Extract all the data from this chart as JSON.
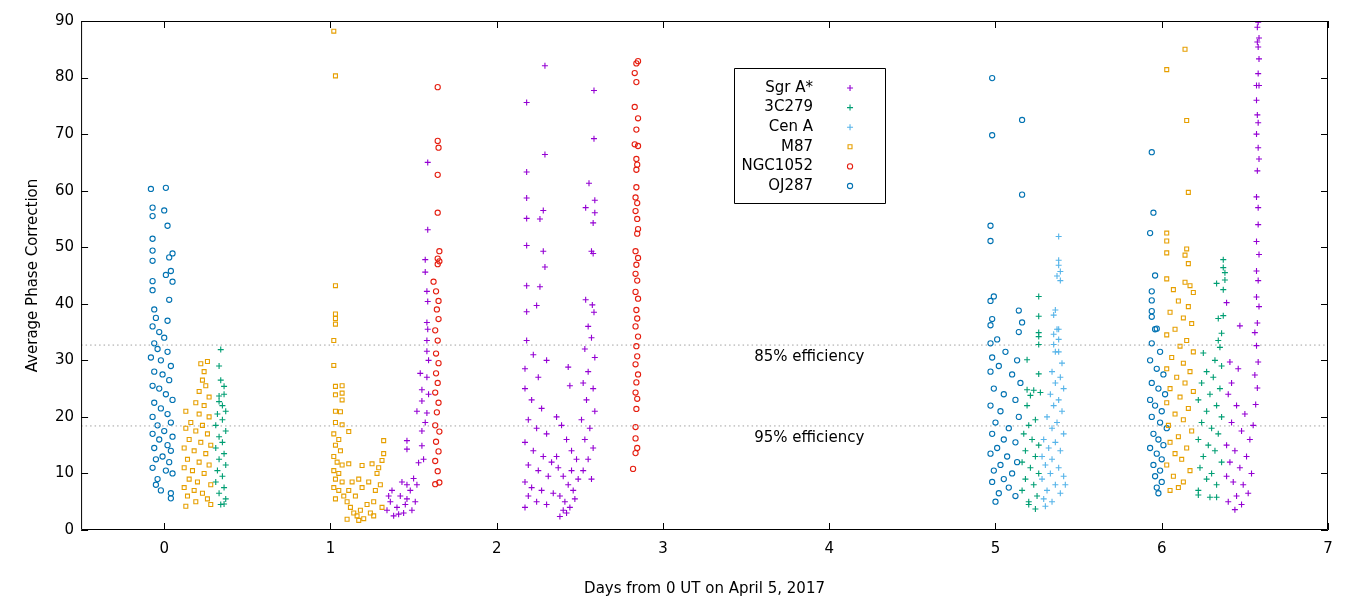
{
  "chart_data": {
    "type": "scatter",
    "xlabel": "Days from 0 UT on April 5, 2017",
    "ylabel": "Average Phase Correction",
    "xlim": [
      -0.5,
      7
    ],
    "xticks": [
      0,
      1,
      2,
      3,
      4,
      5,
      6,
      7
    ],
    "ylim": [
      0,
      90
    ],
    "yticks": [
      0,
      10,
      20,
      30,
      40,
      50,
      60,
      70,
      80,
      90
    ],
    "legend": "top",
    "ref_lines": [
      {
        "axis": "y",
        "value": 32.7,
        "label": "85% efficiency",
        "color": "#a0a0a0",
        "line_style": "dotted"
      },
      {
        "axis": "y",
        "value": 18.4,
        "label": "95% efficiency",
        "color": "#a0a0a0",
        "line_style": "dotted"
      }
    ],
    "series": [
      {
        "name": "Sgr A*",
        "color": "#9400d3",
        "marker": "cross",
        "x": [
          1.585,
          1.585,
          1.57,
          1.57,
          1.58,
          1.585,
          1.58,
          1.585,
          1.58,
          1.58,
          1.59,
          1.54,
          1.58,
          1.55,
          1.55,
          1.58,
          1.52,
          1.46,
          1.46,
          1.55,
          1.55,
          1.53,
          1.57,
          1.5,
          1.52,
          1.56,
          1.59,
          1.34,
          1.36,
          1.38,
          1.4,
          1.42,
          1.44,
          1.46,
          1.48,
          1.37,
          1.43,
          1.35,
          1.41,
          1.45,
          1.49,
          1.51,
          1.46,
          2.29,
          2.18,
          2.585,
          2.585,
          2.29,
          2.18,
          2.18,
          2.28,
          2.18,
          2.26,
          2.555,
          2.59,
          2.535,
          2.59,
          2.58,
          2.18,
          2.28,
          2.57,
          2.29,
          2.58,
          2.18,
          2.26,
          2.24,
          2.18,
          2.535,
          2.575,
          2.585,
          2.55,
          2.57,
          2.53,
          2.59,
          2.18,
          2.22,
          2.3,
          2.17,
          2.25,
          2.55,
          2.52,
          2.58,
          2.54,
          2.59,
          2.51,
          2.56,
          2.53,
          2.58,
          2.55,
          2.52,
          2.57,
          2.17,
          2.21,
          2.27,
          2.19,
          2.24,
          2.3,
          2.17,
          2.22,
          2.28,
          2.33,
          2.19,
          2.25,
          2.31,
          2.17,
          2.21,
          2.27,
          2.34,
          2.19,
          2.24,
          2.3,
          2.17,
          2.36,
          2.39,
          2.42,
          2.45,
          2.48,
          2.37,
          2.4,
          2.43,
          2.46,
          2.38,
          2.41,
          2.44,
          2.38,
          2.42,
          2.47,
          2.49,
          2.45,
          2.36,
          2.4,
          2.43,
          2.44,
          6.58,
          6.575,
          6.585,
          6.575,
          6.58,
          6.585,
          6.58,
          6.57,
          6.585,
          6.57,
          6.575,
          6.58,
          6.57,
          6.58,
          6.585,
          6.575,
          6.57,
          6.58,
          6.58,
          6.57,
          6.585,
          6.57,
          6.58,
          6.57,
          6.585,
          6.575,
          6.56,
          6.57,
          6.58,
          6.56,
          6.575,
          6.565,
          6.47,
          6.39,
          6.46,
          6.41,
          6.4,
          6.45,
          6.5,
          6.42,
          6.48,
          6.53,
          6.39,
          6.44,
          6.51,
          6.41,
          6.47,
          6.54,
          6.39,
          6.43,
          6.49,
          6.52,
          6.45,
          6.4,
          6.48,
          6.44,
          6.55,
          6.42
        ],
        "values": [
          65.0,
          53.1,
          47.8,
          45.6,
          42.2,
          40.4,
          36.7,
          35.5,
          33.5,
          31.6,
          30.0,
          27.7,
          27.0,
          24.8,
          22.8,
          20.7,
          21.0,
          15.8,
          14.3,
          17.5,
          14.9,
          11.9,
          19.0,
          9.1,
          8.0,
          12.5,
          24.0,
          3.5,
          5.0,
          2.5,
          4.0,
          6.0,
          3.0,
          5.5,
          7.0,
          7.0,
          8.5,
          6.0,
          2.8,
          4.5,
          3.5,
          5.0,
          8.0,
          82.1,
          75.6,
          77.7,
          69.2,
          66.4,
          63.3,
          58.7,
          56.5,
          55.1,
          55.0,
          61.3,
          58.3,
          57.0,
          56.1,
          54.3,
          50.3,
          49.3,
          49.3,
          46.5,
          48.9,
          43.2,
          43.0,
          39.7,
          38.6,
          40.7,
          39.8,
          38.5,
          36.0,
          34.0,
          32.0,
          30.5,
          33.5,
          31.0,
          30.0,
          28.5,
          27.0,
          28.0,
          26.0,
          25.0,
          23.0,
          21.0,
          19.5,
          18.0,
          16.0,
          14.5,
          12.5,
          10.5,
          9.0,
          25.0,
          23.0,
          21.5,
          19.5,
          18.0,
          17.0,
          15.5,
          14.0,
          13.0,
          12.0,
          11.5,
          10.5,
          9.5,
          8.5,
          7.5,
          7.0,
          6.5,
          6.0,
          5.0,
          4.5,
          4.0,
          20.0,
          18.5,
          16.0,
          14.0,
          12.5,
          11.0,
          9.5,
          8.0,
          7.0,
          6.0,
          5.0,
          4.0,
          2.4,
          3.0,
          5.5,
          9.0,
          10.5,
          13.0,
          3.5,
          28.8,
          25.5,
          89.8,
          88.9,
          87.0,
          86.3,
          85.4,
          83.3,
          80.7,
          78.6,
          78.6,
          76.0,
          73.4,
          72.0,
          70.0,
          67.6,
          65.6,
          63.5,
          58.9,
          57.0,
          54.0,
          51.0,
          48.7,
          45.8,
          44.1,
          41.2,
          39.5,
          36.6,
          34.9,
          32.6,
          29.7,
          27.4,
          25.1,
          22.2,
          36.1,
          40.2,
          28.5,
          29.7,
          24.0,
          22.0,
          20.5,
          19.0,
          17.5,
          16.0,
          15.0,
          14.0,
          13.0,
          12.0,
          11.0,
          10.0,
          9.5,
          8.5,
          8.0,
          6.5,
          6.0,
          5.0,
          4.5,
          3.6,
          18.5,
          26.0
        ]
      },
      {
        "name": "3C279",
        "color": "#009e73",
        "marker": "cross",
        "x": [
          0.34,
          0.33,
          0.34,
          0.36,
          0.36,
          0.33,
          0.33,
          0.35,
          0.37,
          0.32,
          0.35,
          0.31,
          0.37,
          0.33,
          0.35,
          0.31,
          0.36,
          0.33,
          0.37,
          0.32,
          0.35,
          0.31,
          0.36,
          0.33,
          0.37,
          0.34,
          0.36,
          5.26,
          5.26,
          5.26,
          5.26,
          5.26,
          5.19,
          5.26,
          5.19,
          5.23,
          5.21,
          5.27,
          5.19,
          5.2,
          5.24,
          5.17,
          5.22,
          5.26,
          5.18,
          5.24,
          5.16,
          5.21,
          5.26,
          5.18,
          5.23,
          5.16,
          5.25,
          5.2,
          5.24,
          5.2,
          6.37,
          6.37,
          6.38,
          6.33,
          6.38,
          6.37,
          6.34,
          6.37,
          6.36,
          6.34,
          6.35,
          6.25,
          6.32,
          6.36,
          6.27,
          6.31,
          6.24,
          6.35,
          6.29,
          6.22,
          6.33,
          6.27,
          6.36,
          6.24,
          6.3,
          6.34,
          6.22,
          6.28,
          6.32,
          6.25,
          6.36,
          6.23,
          6.3,
          6.27,
          6.33,
          6.22,
          6.29,
          6.33,
          6.22
        ],
        "values": [
          31.9,
          29.0,
          26.5,
          25.4,
          24.0,
          23.7,
          22.7,
          22.0,
          21.0,
          20.5,
          19.5,
          18.5,
          17.5,
          16.5,
          15.5,
          14.5,
          13.5,
          12.5,
          11.5,
          10.5,
          9.5,
          8.5,
          7.5,
          6.5,
          5.5,
          4.5,
          4.6,
          41.3,
          37.8,
          34.9,
          34.2,
          32.8,
          30.1,
          27.6,
          24.8,
          24.7,
          23.8,
          24.3,
          22.0,
          18.5,
          19.5,
          17.0,
          16.0,
          15.0,
          14.0,
          13.0,
          12.0,
          11.0,
          10.0,
          9.0,
          8.0,
          7.0,
          6.0,
          5.0,
          3.7,
          4.5,
          47.8,
          46.4,
          45.5,
          43.6,
          44.2,
          42.5,
          37.4,
          37.9,
          34.8,
          33.5,
          32.3,
          31.3,
          30.0,
          29.0,
          28.0,
          27.0,
          26.0,
          25.0,
          24.0,
          23.0,
          22.0,
          21.0,
          20.0,
          19.0,
          18.0,
          17.0,
          16.0,
          15.0,
          14.0,
          13.0,
          12.0,
          11.0,
          10.0,
          9.0,
          8.0,
          7.0,
          5.8,
          5.8,
          6.2
        ]
      },
      {
        "name": "Cen A",
        "color": "#56b4e9",
        "marker": "cross",
        "x": [
          5.38,
          5.38,
          5.38,
          5.39,
          5.37,
          5.39,
          5.36,
          5.35,
          5.38,
          5.37,
          5.38,
          5.35,
          5.35,
          5.36,
          5.38,
          5.4,
          5.34,
          5.39,
          5.36,
          5.41,
          5.33,
          5.38,
          5.35,
          5.4,
          5.31,
          5.37,
          5.34,
          5.41,
          5.29,
          5.36,
          5.32,
          5.39,
          5.28,
          5.34,
          5.3,
          5.38,
          5.33,
          5.41,
          5.28,
          5.36,
          5.31,
          5.39,
          5.29,
          5.34,
          5.3,
          5.42
        ],
        "values": [
          51.9,
          47.7,
          46.8,
          45.7,
          44.9,
          44.1,
          38.9,
          38.0,
          35.5,
          35.5,
          33.7,
          34.6,
          32.8,
          31.5,
          31.5,
          29.5,
          28.0,
          27.0,
          26.0,
          25.0,
          24.0,
          23.0,
          22.0,
          21.0,
          20.0,
          19.0,
          18.0,
          17.0,
          16.0,
          15.5,
          14.5,
          14.0,
          13.0,
          12.5,
          11.5,
          11.0,
          10.0,
          9.5,
          9.0,
          8.0,
          7.0,
          6.5,
          5.5,
          5.0,
          4.2,
          8.0
        ]
      },
      {
        "name": "M87",
        "color": "#e69f00",
        "marker": "square",
        "x": [
          0.26,
          0.22,
          0.24,
          0.23,
          0.25,
          0.21,
          0.27,
          0.19,
          0.24,
          0.13,
          0.21,
          0.27,
          0.16,
          0.23,
          0.13,
          0.19,
          0.26,
          0.15,
          0.22,
          0.28,
          0.12,
          0.18,
          0.25,
          0.14,
          0.21,
          0.27,
          0.12,
          0.17,
          0.24,
          0.15,
          0.2,
          0.28,
          0.12,
          0.18,
          0.23,
          0.14,
          0.26,
          0.19,
          0.13,
          0.28,
          1.02,
          1.03,
          1.03,
          1.03,
          1.03,
          1.03,
          1.02,
          1.02,
          1.03,
          1.07,
          1.03,
          1.07,
          1.07,
          1.03,
          1.06,
          1.03,
          1.07,
          1.11,
          1.02,
          1.05,
          1.03,
          1.06,
          1.02,
          1.04,
          1.07,
          1.02,
          1.05,
          1.03,
          1.07,
          1.02,
          1.05,
          1.08,
          1.03,
          1.1,
          1.12,
          1.14,
          1.16,
          1.18,
          1.15,
          1.2,
          1.22,
          1.24,
          1.19,
          1.23,
          1.17,
          1.26,
          1.27,
          1.28,
          1.29,
          1.3,
          1.31,
          1.32,
          1.32,
          1.31,
          1.26,
          1.11,
          1.13,
          1.11,
          1.19,
          1.25,
          1.1,
          1.17,
          6.14,
          6.03,
          6.15,
          6.16,
          6.03,
          6.03,
          6.03,
          6.15,
          6.14,
          6.16,
          6.03,
          6.14,
          6.17,
          6.07,
          6.19,
          6.1,
          6.16,
          6.05,
          6.13,
          6.18,
          6.08,
          6.03,
          6.15,
          6.11,
          6.19,
          6.06,
          6.13,
          6.03,
          6.17,
          6.09,
          6.14,
          6.05,
          6.19,
          6.11,
          6.03,
          6.16,
          6.08,
          6.13,
          6.04,
          6.18,
          6.1,
          6.05,
          6.15,
          6.08,
          6.12,
          6.03,
          6.17,
          6.07,
          6.1,
          6.05,
          6.13
        ],
        "values": [
          29.8,
          29.4,
          28.0,
          26.5,
          25.5,
          24.5,
          23.5,
          22.5,
          22.0,
          21.0,
          20.5,
          20.0,
          19.0,
          18.5,
          18.0,
          17.5,
          17.0,
          16.0,
          15.5,
          15.0,
          14.5,
          14.0,
          13.5,
          12.5,
          12.0,
          11.5,
          11.0,
          10.5,
          10.0,
          9.0,
          8.5,
          8.0,
          7.5,
          7.0,
          6.5,
          6.0,
          5.5,
          5.0,
          4.2,
          4.5,
          88.2,
          80.3,
          43.2,
          38.2,
          37.4,
          36.4,
          33.5,
          29.1,
          25.4,
          25.5,
          23.9,
          24.2,
          23.0,
          21.0,
          20.9,
          19.0,
          18.6,
          17.4,
          17.0,
          16.0,
          15.0,
          14.0,
          13.0,
          12.0,
          11.5,
          10.5,
          10.0,
          9.0,
          8.5,
          7.5,
          7.0,
          6.0,
          5.5,
          5.0,
          4.0,
          3.0,
          2.5,
          3.5,
          6.0,
          2.0,
          4.5,
          3.0,
          7.5,
          8.5,
          9.0,
          5.0,
          7.0,
          10.0,
          11.0,
          8.0,
          12.3,
          13.5,
          15.8,
          4.0,
          2.5,
          7.0,
          8.5,
          11.7,
          11.4,
          11.7,
          1.9,
          1.7,
          85.0,
          81.4,
          72.4,
          59.7,
          52.5,
          51.1,
          49.0,
          49.7,
          48.6,
          47.1,
          44.4,
          43.8,
          43.2,
          42.5,
          42.0,
          40.5,
          39.5,
          38.5,
          37.5,
          36.5,
          35.5,
          34.5,
          33.5,
          32.5,
          31.5,
          30.5,
          29.5,
          28.5,
          28.0,
          27.0,
          26.0,
          25.0,
          24.5,
          23.5,
          22.5,
          21.5,
          20.5,
          19.5,
          18.5,
          17.5,
          16.5,
          15.5,
          14.5,
          13.5,
          12.5,
          11.5,
          10.5,
          9.5,
          7.5,
          7.0,
          8.5
        ]
      },
      {
        "name": "NGC1052",
        "color": "#e51e10",
        "marker": "circle",
        "x": [
          1.645,
          1.645,
          1.65,
          1.645,
          1.645,
          1.655,
          1.645,
          1.655,
          1.645,
          1.62,
          1.635,
          1.65,
          1.64,
          1.65,
          1.63,
          1.645,
          1.635,
          1.65,
          1.635,
          1.645,
          1.63,
          1.65,
          1.64,
          1.63,
          1.655,
          1.635,
          1.65,
          1.63,
          1.645,
          1.63,
          1.655,
          2.85,
          2.84,
          2.83,
          2.84,
          2.83,
          2.85,
          2.84,
          2.83,
          2.85,
          2.84,
          2.845,
          2.84,
          2.84,
          2.835,
          2.845,
          2.835,
          2.845,
          2.85,
          2.845,
          2.835,
          2.85,
          2.84,
          2.835,
          2.845,
          2.835,
          2.85,
          2.84,
          2.845,
          2.835,
          2.85,
          2.84,
          2.845,
          2.835,
          2.85,
          2.84,
          2.835,
          2.845,
          2.84,
          2.835,
          2.835,
          2.845,
          2.835,
          2.82
        ],
        "values": [
          78.3,
          68.8,
          67.6,
          62.8,
          56.1,
          49.3,
          48.0,
          47.5,
          47.0,
          43.9,
          42.2,
          40.5,
          39.0,
          37.3,
          35.3,
          33.5,
          31.2,
          29.5,
          27.7,
          26.0,
          24.3,
          22.5,
          20.8,
          18.5,
          17.4,
          15.6,
          13.9,
          12.2,
          10.4,
          8.1,
          8.4,
          82.9,
          82.5,
          80.8,
          79.2,
          74.8,
          72.8,
          70.8,
          68.2,
          67.9,
          65.6,
          64.6,
          63.7,
          60.6,
          58.8,
          57.8,
          56.4,
          55.0,
          53.2,
          52.4,
          49.3,
          48.1,
          46.9,
          45.3,
          44.1,
          42.1,
          40.9,
          38.9,
          37.4,
          36.0,
          34.2,
          32.5,
          30.7,
          29.3,
          27.5,
          26.1,
          24.3,
          23.2,
          21.4,
          18.2,
          16.2,
          14.5,
          13.6,
          10.8
        ]
      },
      {
        "name": "OJ287",
        "color": "#0072b2",
        "marker": "circle",
        "x": [
          -0.08,
          0.01,
          -0.07,
          0.0,
          -0.07,
          0.02,
          -0.07,
          -0.07,
          0.05,
          0.03,
          -0.07,
          0.04,
          0.01,
          -0.07,
          0.05,
          -0.07,
          0.03,
          -0.06,
          -0.05,
          0.02,
          -0.07,
          -0.03,
          0.0,
          -0.06,
          -0.04,
          0.02,
          -0.08,
          -0.02,
          0.04,
          -0.06,
          -0.01,
          0.03,
          -0.07,
          -0.03,
          0.01,
          0.05,
          -0.06,
          -0.02,
          0.02,
          -0.07,
          0.04,
          -0.04,
          0.0,
          -0.07,
          0.05,
          -0.03,
          0.02,
          -0.06,
          0.04,
          -0.01,
          -0.05,
          0.03,
          -0.07,
          0.01,
          0.05,
          -0.04,
          -0.05,
          0.04,
          -0.02,
          0.04,
          4.98,
          5.16,
          4.98,
          5.16,
          4.97,
          4.97,
          4.99,
          4.97,
          4.98,
          4.97,
          5.14,
          5.16,
          5.14,
          5.01,
          4.97,
          5.06,
          4.98,
          5.13,
          5.02,
          4.97,
          5.1,
          5.15,
          4.99,
          5.05,
          5.12,
          4.97,
          5.03,
          5.14,
          5.0,
          5.08,
          4.98,
          5.05,
          5.12,
          5.01,
          4.97,
          5.07,
          5.13,
          5.03,
          4.99,
          5.1,
          5.05,
          4.98,
          5.08,
          5.02,
          5.12,
          5.0,
          5.94,
          5.95,
          5.93,
          5.96,
          5.94,
          5.94,
          5.94,
          5.94,
          5.96,
          5.97,
          5.94,
          5.99,
          5.93,
          5.97,
          6.01,
          5.94,
          5.98,
          6.02,
          5.93,
          5.96,
          6.0,
          5.94,
          5.99,
          6.03,
          5.95,
          5.98,
          6.01,
          5.93,
          5.97,
          6.0,
          5.95,
          5.99,
          5.96,
          6.0,
          5.97,
          5.98
        ],
        "values": [
          60.3,
          60.5,
          57.0,
          56.5,
          55.5,
          53.8,
          51.5,
          49.4,
          48.9,
          48.2,
          47.6,
          45.8,
          45.1,
          44.0,
          43.9,
          42.4,
          40.7,
          39.0,
          37.5,
          37.0,
          36.0,
          35.0,
          34.0,
          33.0,
          32.0,
          31.5,
          30.5,
          30.0,
          29.0,
          28.0,
          27.5,
          26.5,
          25.5,
          25.0,
          24.0,
          23.0,
          22.5,
          21.5,
          20.5,
          20.0,
          19.0,
          18.5,
          17.5,
          17.0,
          16.5,
          16.0,
          15.0,
          14.5,
          14.0,
          13.0,
          12.5,
          12.0,
          11.0,
          10.5,
          10.0,
          9.0,
          8.0,
          6.5,
          7.0,
          5.6,
          79.9,
          72.5,
          69.8,
          59.3,
          53.8,
          51.1,
          41.3,
          40.5,
          37.3,
          36.2,
          38.8,
          36.7,
          35.0,
          33.7,
          33.0,
          31.5,
          30.5,
          30.0,
          29.0,
          28.0,
          27.5,
          26.0,
          25.0,
          24.0,
          23.0,
          22.0,
          21.0,
          20.0,
          19.0,
          18.0,
          17.0,
          16.0,
          15.5,
          14.5,
          13.5,
          13.0,
          12.0,
          11.5,
          10.5,
          10.0,
          9.0,
          8.5,
          7.5,
          6.5,
          6.0,
          5.0,
          66.8,
          56.1,
          52.5,
          45.0,
          42.2,
          40.6,
          38.7,
          37.7,
          35.5,
          35.6,
          33.0,
          31.5,
          30.0,
          28.5,
          27.5,
          26.0,
          25.0,
          24.0,
          23.0,
          22.0,
          21.0,
          20.0,
          19.0,
          18.0,
          17.0,
          16.0,
          15.0,
          14.5,
          13.5,
          12.5,
          11.5,
          10.5,
          9.5,
          8.5,
          7.5,
          6.5
        ]
      }
    ]
  }
}
